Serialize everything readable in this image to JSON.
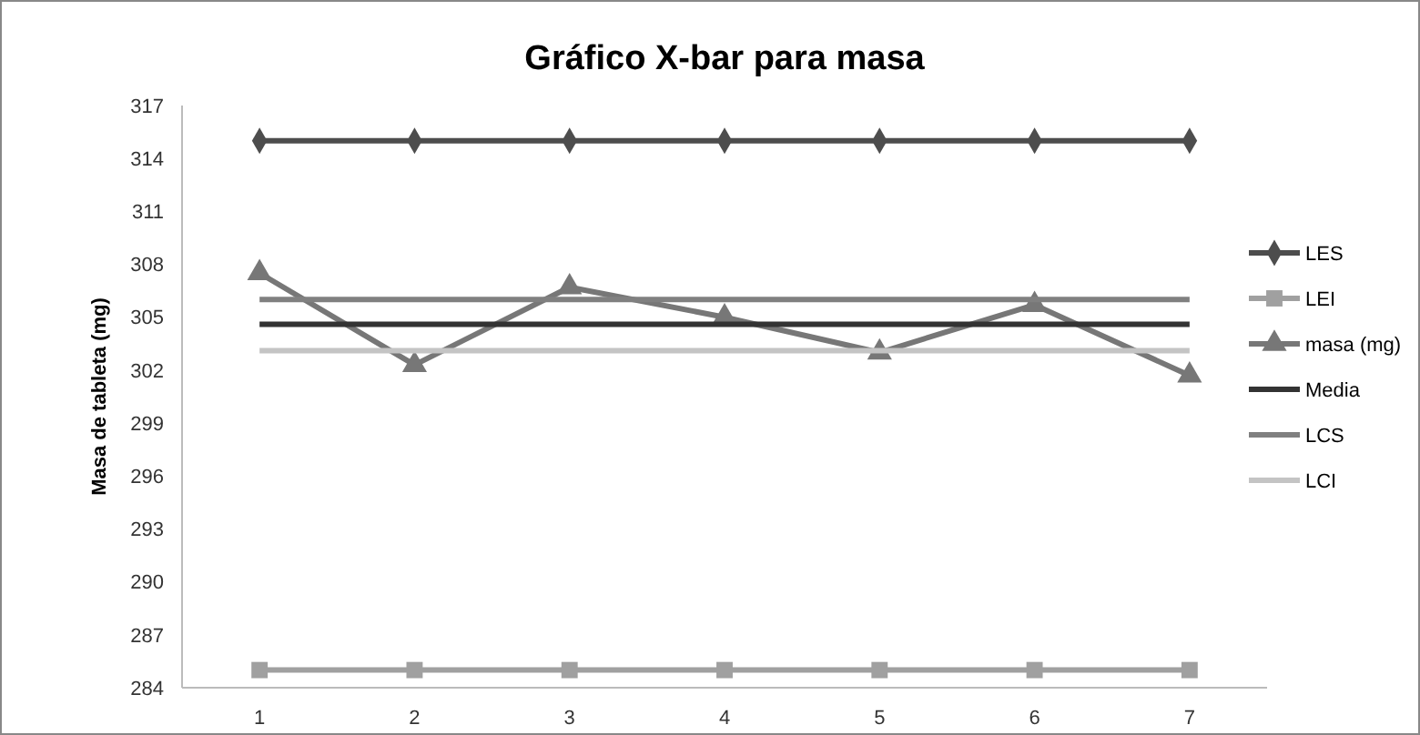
{
  "chart_data": {
    "type": "line",
    "title": "Gráfico X-bar para masa",
    "ylabel": "Masa de tableta (mg)",
    "categories": [
      "1",
      "2",
      "3",
      "4",
      "5",
      "6",
      "7"
    ],
    "ylim": [
      284,
      317
    ],
    "yticks": [
      284,
      287,
      290,
      293,
      296,
      299,
      302,
      305,
      308,
      311,
      314,
      317
    ],
    "grid": false,
    "legend": "right",
    "series": [
      {
        "name": "LES",
        "color": "#4d4d4d",
        "marker": "diamond",
        "values": [
          315,
          315,
          315,
          315,
          315,
          315,
          315
        ]
      },
      {
        "name": "LEI",
        "color": "#a0a0a0",
        "marker": "square",
        "values": [
          285,
          285,
          285,
          285,
          285,
          285,
          285
        ]
      },
      {
        "name": "masa (mg)",
        "color": "#777777",
        "marker": "triangle",
        "values": [
          307.5,
          302.3,
          306.7,
          305.0,
          303.0,
          305.7,
          301.7
        ]
      },
      {
        "name": "Media",
        "color": "#333333",
        "marker": "none",
        "values": [
          304.6,
          304.6,
          304.6,
          304.6,
          304.6,
          304.6,
          304.6
        ]
      },
      {
        "name": "LCS",
        "color": "#808080",
        "marker": "none",
        "values": [
          306.0,
          306.0,
          306.0,
          306.0,
          306.0,
          306.0,
          306.0
        ]
      },
      {
        "name": "LCI",
        "color": "#c4c4c4",
        "marker": "none",
        "values": [
          303.1,
          303.1,
          303.1,
          303.1,
          303.1,
          303.1,
          303.1
        ]
      }
    ]
  }
}
